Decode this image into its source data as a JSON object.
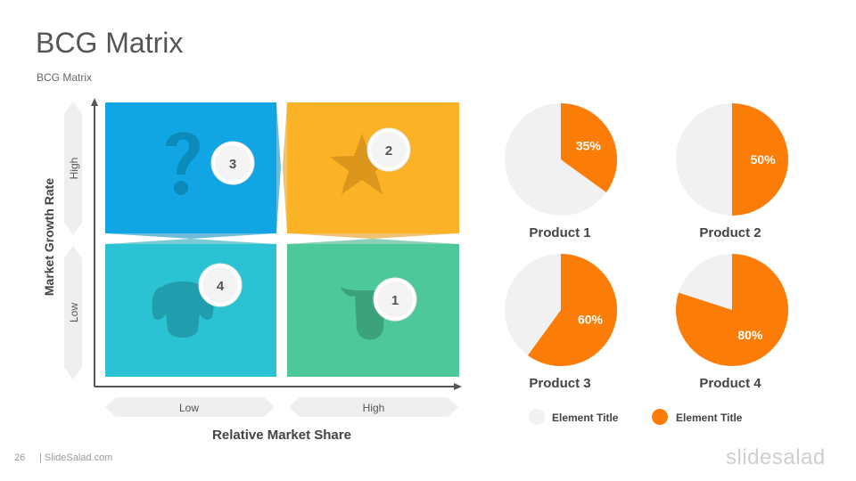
{
  "slide": {
    "title": "BCG Matrix",
    "subtitle": "BCG Matrix",
    "page_number": "26",
    "footer_site": "| SlideSalad.com",
    "brand": "slidesalad"
  },
  "matrix": {
    "y_axis_title": "Market Growth Rate",
    "x_axis_title": "Relative Market Share",
    "y_high": "High",
    "y_low": "Low",
    "x_low": "Low",
    "x_high": "High",
    "quadrants": [
      {
        "id": "question-mark",
        "icon": "question-mark-icon",
        "number": "3",
        "color": "#11a6e3"
      },
      {
        "id": "star",
        "icon": "star-icon",
        "number": "2",
        "color": "#fbb226"
      },
      {
        "id": "dog",
        "icon": "dog-icon",
        "number": "4",
        "color": "#2bc3d4"
      },
      {
        "id": "cash-cow",
        "icon": "cow-icon",
        "number": "1",
        "color": "#4cc89b"
      }
    ]
  },
  "chart_data": [
    {
      "type": "pie",
      "title": "Product 1",
      "categories": [
        "Element Title",
        "Element Title"
      ],
      "values": [
        65,
        35
      ],
      "label": "35%"
    },
    {
      "type": "pie",
      "title": "Product 2",
      "categories": [
        "Element Title",
        "Element Title"
      ],
      "values": [
        50,
        50
      ],
      "label": "50%"
    },
    {
      "type": "pie",
      "title": "Product 3",
      "categories": [
        "Element Title",
        "Element Title"
      ],
      "values": [
        40,
        60
      ],
      "label": "60%"
    },
    {
      "type": "pie",
      "title": "Product 4",
      "categories": [
        "Element Title",
        "Element Title"
      ],
      "values": [
        20,
        80
      ],
      "label": "80%"
    }
  ],
  "legend": [
    {
      "label": "Element Title",
      "color": "#f1f1f1"
    },
    {
      "label": "Element Title",
      "color": "#fb7d08"
    }
  ],
  "colors": {
    "pie_base": "#f1f1f1",
    "pie_accent": "#fb7d08"
  }
}
